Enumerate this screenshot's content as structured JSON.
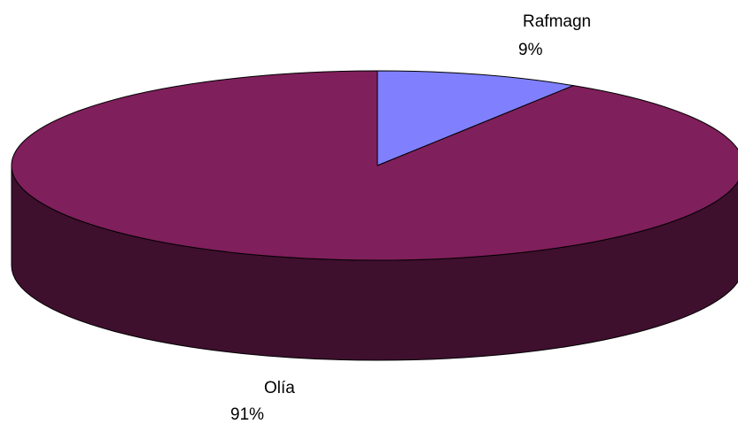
{
  "chart_data": {
    "type": "pie",
    "style": "3d",
    "slices": [
      {
        "name": "Rafmagn",
        "value": 9,
        "label": "9%",
        "color": "#8080ff",
        "side_color": "#40407f"
      },
      {
        "name": "Olía",
        "value": 91,
        "label": "91%",
        "color": "#7f1f5b",
        "side_color": "#3f0f2e"
      }
    ],
    "legend": "none"
  }
}
